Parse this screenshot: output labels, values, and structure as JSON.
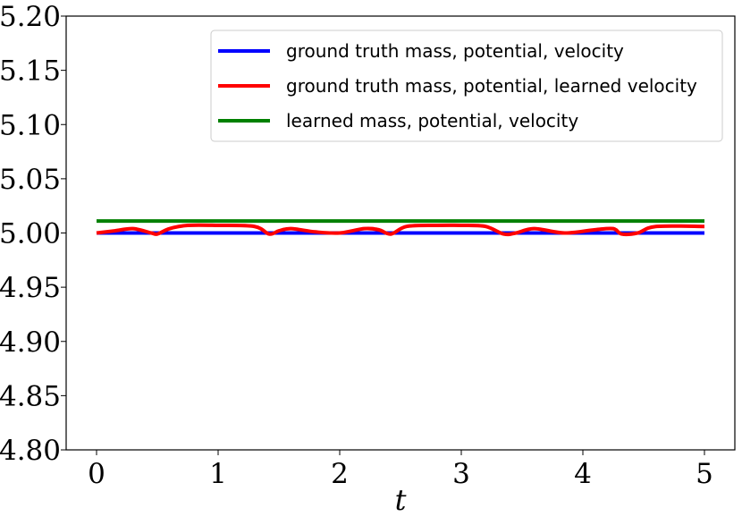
{
  "chart_data": {
    "type": "line",
    "title": "",
    "xlabel": "t",
    "ylabel": "",
    "xlim": [
      -0.25,
      5.25
    ],
    "ylim": [
      4.8,
      5.2
    ],
    "xticks": [
      0,
      1,
      2,
      3,
      4,
      5
    ],
    "xtick_labels": [
      "0",
      "1",
      "2",
      "3",
      "4",
      "5"
    ],
    "yticks": [
      4.8,
      4.85,
      4.9,
      4.95,
      5.0,
      5.05,
      5.1,
      5.15,
      5.2
    ],
    "ytick_labels": [
      "4.80",
      "4.85",
      "4.90",
      "4.95",
      "5.00",
      "5.05",
      "5.10",
      "5.15",
      "5.20"
    ],
    "grid": false,
    "legend_position": "top-right",
    "series": [
      {
        "name": "ground truth mass, potential, velocity",
        "color": "#0000ff",
        "x": [
          0,
          1,
          2,
          3,
          4,
          5
        ],
        "y": [
          5.0,
          5.0,
          5.0,
          5.0,
          5.0,
          5.0
        ]
      },
      {
        "name": "ground truth mass, potential, learned velocity",
        "color": "#ff0000",
        "x": [
          0,
          0.15,
          0.3,
          0.45,
          0.5,
          0.6,
          0.75,
          1.0,
          1.3,
          1.42,
          1.5,
          1.6,
          1.8,
          2.0,
          2.2,
          2.32,
          2.42,
          2.55,
          2.8,
          3.0,
          3.2,
          3.35,
          3.45,
          3.6,
          3.85,
          4.1,
          4.25,
          4.32,
          4.45,
          4.6,
          5.0
        ],
        "y": [
          5.0,
          5.002,
          5.004,
          5.0,
          4.999,
          5.004,
          5.007,
          5.007,
          5.006,
          4.999,
          5.002,
          5.004,
          5.001,
          5.0,
          5.004,
          5.003,
          4.999,
          5.006,
          5.007,
          5.007,
          5.006,
          4.999,
          5.0,
          5.004,
          5.0,
          5.003,
          5.004,
          4.999,
          5.0,
          5.006,
          5.006
        ]
      },
      {
        "name": "learned mass, potential, velocity",
        "color": "#008000",
        "x": [
          0,
          0.5,
          1.0,
          1.5,
          2.0,
          2.5,
          3.0,
          3.5,
          4.0,
          4.5,
          5.0
        ],
        "y": [
          5.011,
          5.011,
          5.011,
          5.011,
          5.011,
          5.011,
          5.011,
          5.011,
          5.011,
          5.011,
          5.011
        ]
      }
    ]
  }
}
